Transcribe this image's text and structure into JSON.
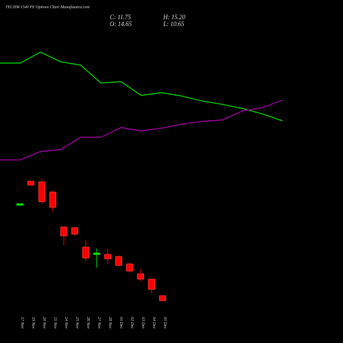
{
  "header": {
    "title": "TECHM 1540 PE Options Chart Munafasutra.com",
    "close": "C: 11.75",
    "high": "H: 15.20",
    "open": "O: 14.65",
    "low": "L: 10.65"
  },
  "chart_data": [
    {
      "type": "line",
      "ylim": [
        0,
        100
      ],
      "series": [
        {
          "color": "#00dd00",
          "values": [
            83.2,
            83.2,
            91.6,
            84.2,
            81.6,
            67.9,
            68.9,
            58.4,
            60.5,
            57.9,
            54.2,
            51.6,
            48.4,
            44.2,
            38.9
          ]
        },
        {
          "color": "#aa00aa",
          "values": [
            8.9,
            8.9,
            15.3,
            16.8,
            26.3,
            26.3,
            33.7,
            31.1,
            33.2,
            36.3,
            38.4,
            39.5,
            46.3,
            48.9,
            54.7
          ]
        }
      ]
    },
    {
      "type": "candlestick",
      "ylim": [
        5,
        42
      ],
      "up_color": "#00ee00",
      "down_color": "#ff0000",
      "categories": [
        "17 Nov",
        "19 Nov",
        "20 Nov",
        "21 Nov",
        "24 Nov",
        "25 Nov",
        "26 Nov",
        "27 Nov",
        "28 Nov",
        "01 Dec",
        "02 Dec",
        "03 Dec",
        "04 Dec",
        "05 Dec"
      ],
      "open": [
        34.0,
        40.8,
        40.6,
        37.7,
        27.8,
        27.6,
        22.1,
        20.4,
        20.0,
        19.4,
        17.3,
        14.5,
        13.0,
        8.3
      ],
      "high": [
        34.4,
        40.8,
        41.6,
        38.1,
        27.8,
        27.6,
        24.1,
        21.7,
        21.6,
        19.8,
        17.7,
        15.9,
        13.0,
        8.3
      ],
      "low": [
        34.0,
        39.7,
        34.4,
        32.1,
        22.7,
        25.4,
        18.2,
        16.3,
        17.3,
        16.7,
        14.9,
        12.4,
        8.9,
        6.9
      ],
      "close": [
        34.4,
        39.7,
        35.0,
        33.4,
        25.3,
        25.8,
        19.0,
        20.4,
        18.8,
        16.9,
        15.3,
        13.0,
        10.1,
        6.9
      ]
    }
  ]
}
